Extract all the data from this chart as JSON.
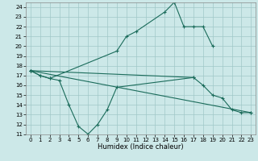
{
  "xlabel": "Humidex (Indice chaleur)",
  "line_color": "#1a6b5a",
  "bg_color": "#cce8e8",
  "ylim": [
    11,
    24.5
  ],
  "yticks": [
    11,
    12,
    13,
    14,
    15,
    16,
    17,
    18,
    19,
    20,
    21,
    22,
    23,
    24
  ],
  "xticks": [
    0,
    1,
    2,
    3,
    4,
    5,
    6,
    7,
    8,
    9,
    10,
    11,
    12,
    13,
    14,
    15,
    16,
    17,
    18,
    19,
    20,
    21,
    22,
    23
  ],
  "curve1_x": [
    0,
    1,
    2,
    9,
    10,
    11,
    14,
    15,
    16,
    17,
    18,
    19
  ],
  "curve1_y": [
    17.5,
    17.0,
    16.7,
    19.5,
    21.0,
    21.5,
    23.5,
    24.5,
    22.0,
    22.0,
    22.0,
    20.0
  ],
  "curve2_x": [
    0,
    1,
    2,
    3,
    4,
    5,
    6,
    7,
    8,
    9,
    17
  ],
  "curve2_y": [
    17.5,
    17.0,
    16.7,
    16.5,
    14.0,
    11.8,
    11.0,
    12.0,
    13.5,
    15.8,
    16.8
  ],
  "curve3_x": [
    0,
    17,
    18,
    19,
    20,
    21,
    22,
    23
  ],
  "curve3_y": [
    17.5,
    16.8,
    16.0,
    15.0,
    14.7,
    13.5,
    13.2,
    13.2
  ],
  "curve4_x": [
    0,
    23
  ],
  "curve4_y": [
    17.5,
    13.2
  ],
  "tick_fontsize": 5,
  "xlabel_fontsize": 6
}
